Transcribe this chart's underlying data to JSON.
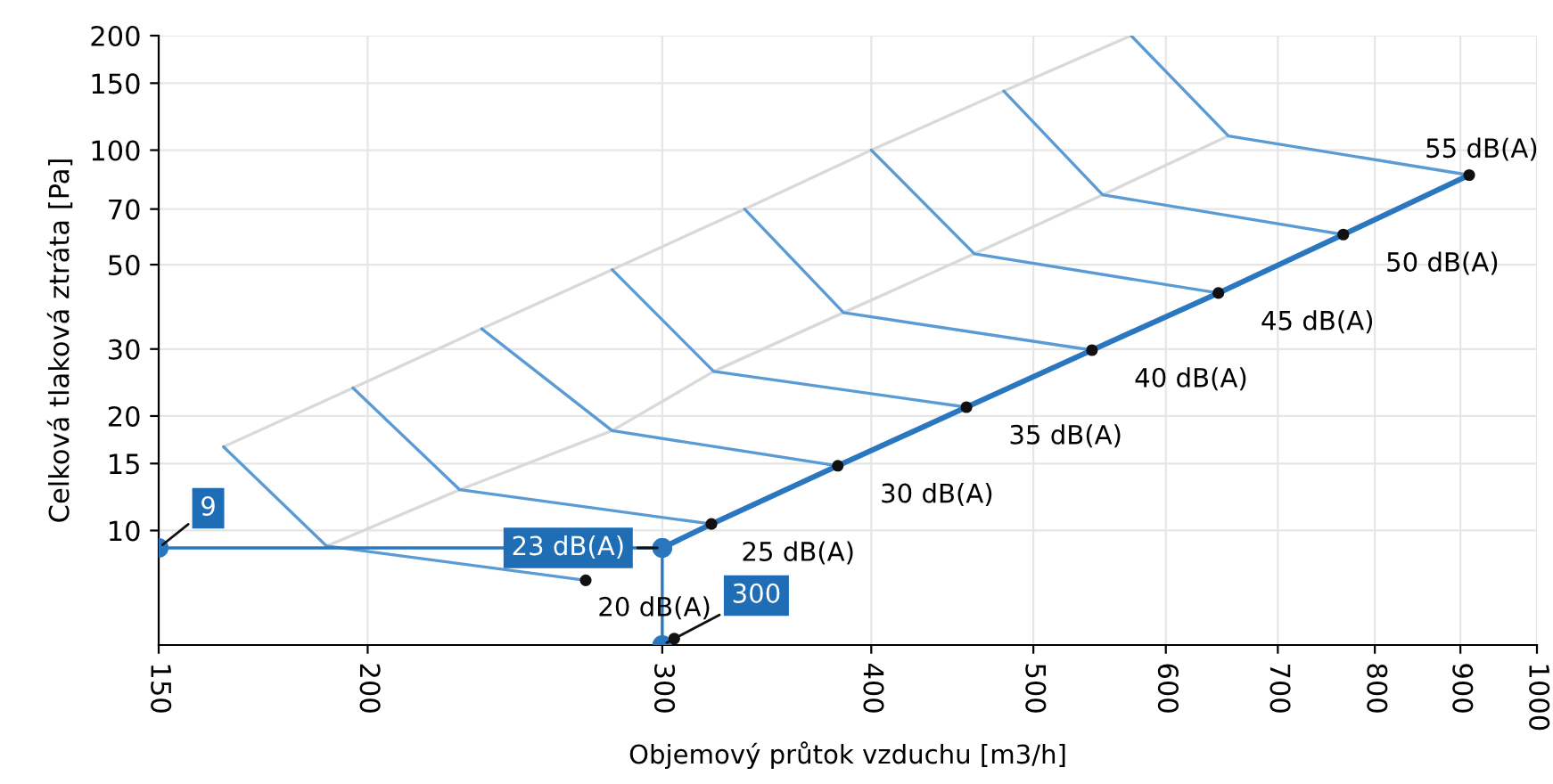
{
  "chart_data": {
    "type": "line",
    "xlabel": "Objemový průtok vzduchu [m3/h]",
    "ylabel": "Celková tlaková ztráta [Pa]",
    "log": "xy",
    "xlim": [
      150,
      1000
    ],
    "ylim": [
      5,
      200
    ],
    "xticks": [
      150,
      200,
      300,
      400,
      500,
      600,
      700,
      800,
      900,
      1000
    ],
    "yticks": [
      10,
      15,
      20,
      30,
      50,
      70,
      100,
      150,
      200
    ],
    "grid": true,
    "legend": false,
    "series": [
      {
        "color": "#d9d9d9",
        "marker": "none",
        "x": [
          164,
          196,
          234,
          280,
          336,
          400,
          480,
          572
        ],
        "values": [
          16.6,
          23.7,
          33.9,
          48.5,
          70,
          100,
          143,
          200
        ]
      },
      {
        "color": "#d9d9d9",
        "marker": "none",
        "x": [
          189,
          227,
          280,
          322,
          385,
          461,
          550,
          654
        ],
        "values": [
          9.1,
          12.8,
          18.3,
          26.2,
          37.4,
          53.4,
          76.3,
          109
        ]
      },
      {
        "color": "#5b9bd5",
        "marker": "none",
        "x": [
          164,
          189,
          270
        ],
        "values": [
          16.6,
          9.1,
          7.4
        ]
      },
      {
        "color": "#5b9bd5",
        "marker": "none",
        "x": [
          196,
          227,
          321
        ],
        "values": [
          23.7,
          12.8,
          10.4
        ]
      },
      {
        "color": "#5b9bd5",
        "marker": "none",
        "x": [
          234,
          280,
          382
        ],
        "values": [
          33.9,
          18.3,
          14.8
        ]
      },
      {
        "color": "#5b9bd5",
        "marker": "none",
        "x": [
          280,
          322,
          456
        ],
        "values": [
          48.5,
          26.2,
          21.1
        ]
      },
      {
        "color": "#5b9bd5",
        "marker": "none",
        "x": [
          336,
          385,
          542
        ],
        "values": [
          70,
          37.4,
          29.8
        ]
      },
      {
        "color": "#5b9bd5",
        "marker": "none",
        "x": [
          400,
          461,
          645
        ],
        "values": [
          100,
          53.4,
          42.1
        ]
      },
      {
        "color": "#5b9bd5",
        "marker": "none",
        "x": [
          480,
          550,
          766
        ],
        "values": [
          143,
          76.3,
          60
        ]
      },
      {
        "color": "#5b9bd5",
        "marker": "none",
        "x": [
          572,
          654,
          911
        ],
        "values": [
          200,
          109,
          86
        ]
      },
      {
        "color": "#2a77c0",
        "marker": "none",
        "x": [
          300,
          321,
          382,
          456,
          542,
          645,
          766,
          911
        ],
        "values": [
          9,
          10.4,
          14.8,
          21.1,
          29.8,
          42.1,
          60,
          86
        ]
      },
      {
        "color": "#111111",
        "type": "scatter",
        "marker": "circle",
        "x": [
          270,
          305,
          321,
          382,
          456,
          542,
          645,
          766,
          911
        ],
        "values": [
          7.4,
          5.2,
          10.4,
          14.8,
          21.1,
          29.8,
          42.1,
          60,
          86
        ]
      },
      {
        "color": "#2a77c0",
        "marker": "circle",
        "x": [
          150,
          300
        ],
        "values": [
          9,
          9
        ]
      },
      {
        "color": "#2a77c0",
        "marker": "circle",
        "x": [
          300,
          300
        ],
        "values": [
          9,
          5
        ]
      }
    ],
    "annotations": [
      {
        "text": "20 dB(A)",
        "x": 305,
        "y": 5.2
      },
      {
        "text": "25 dB(A)",
        "x": 321,
        "y": 10.4
      },
      {
        "text": "30 dB(A)",
        "x": 382,
        "y": 14.8
      },
      {
        "text": "35 dB(A)",
        "x": 456,
        "y": 21.1
      },
      {
        "text": "40 dB(A)",
        "x": 542,
        "y": 29.8
      },
      {
        "text": "45 dB(A)",
        "x": 645,
        "y": 42.1
      },
      {
        "text": "50 dB(A)",
        "x": 766,
        "y": 60
      },
      {
        "text": "55 dB(A)",
        "x": 911,
        "y": 86
      },
      {
        "text": "9",
        "x": 150,
        "y": 9
      },
      {
        "text": "23 dB(A)",
        "x": 300,
        "y": 9
      },
      {
        "text": "300",
        "x": 300,
        "y": 5
      }
    ]
  }
}
